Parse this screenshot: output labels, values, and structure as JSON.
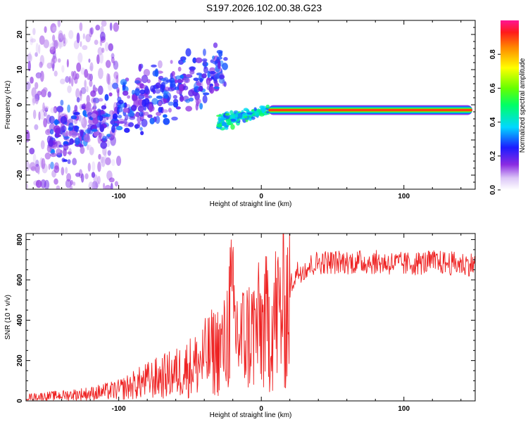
{
  "figure": {
    "title": "S197.2026.102.00.38.G23"
  },
  "chart_data": [
    {
      "type": "heatmap",
      "title": "S197.2026.102.00.38.G23",
      "xlabel": "Height of straight line (km)",
      "ylabel": "Frequency (Hz)",
      "xlim": [
        -165,
        150
      ],
      "ylim": [
        -24,
        24
      ],
      "x_ticks": [
        -100,
        0,
        100
      ],
      "y_ticks": [
        -20,
        -10,
        0,
        10,
        20
      ],
      "colorbar": {
        "label": "Normalized spectral amplitude",
        "range": [
          0,
          1
        ],
        "ticks": [
          0.0,
          0.2,
          0.4,
          0.6,
          0.8
        ]
      },
      "features": [
        {
          "name": "diffuse noise region",
          "x_range": [
            -165,
            -120
          ],
          "y_range": [
            -24,
            24
          ],
          "amplitude": 0.05
        },
        {
          "name": "rising streaks",
          "x_range": [
            -150,
            -25
          ],
          "freq_at_start": -10,
          "freq_at_end": 10,
          "amplitude": 0.3
        },
        {
          "name": "convergence",
          "x_range": [
            -30,
            5
          ],
          "freq_start": -5,
          "freq_end": -1.5,
          "amplitude": 0.45
        },
        {
          "name": "stable carrier line",
          "x_range": [
            5,
            148
          ],
          "freq": -1.5,
          "amplitude": 0.9
        }
      ]
    },
    {
      "type": "line",
      "xlabel": "Height of straight line (km)",
      "ylabel": "SNR (10 * v/v)",
      "xlim": [
        -165,
        150
      ],
      "ylim": [
        0,
        830
      ],
      "x_ticks": [
        -100,
        0,
        100
      ],
      "y_ticks": [
        0,
        200,
        400,
        600,
        800
      ],
      "color": "#ee2222",
      "series": [
        {
          "name": "SNR envelope",
          "x": [
            -165,
            -140,
            -120,
            -100,
            -80,
            -60,
            -45,
            -35,
            -25,
            -22,
            -15,
            -5,
            5,
            15,
            25,
            40,
            60,
            80,
            100,
            120,
            140,
            150
          ],
          "y": [
            20,
            30,
            40,
            60,
            110,
            150,
            200,
            260,
            300,
            500,
            330,
            380,
            420,
            500,
            650,
            700,
            700,
            700,
            690,
            700,
            690,
            690
          ]
        }
      ]
    }
  ]
}
